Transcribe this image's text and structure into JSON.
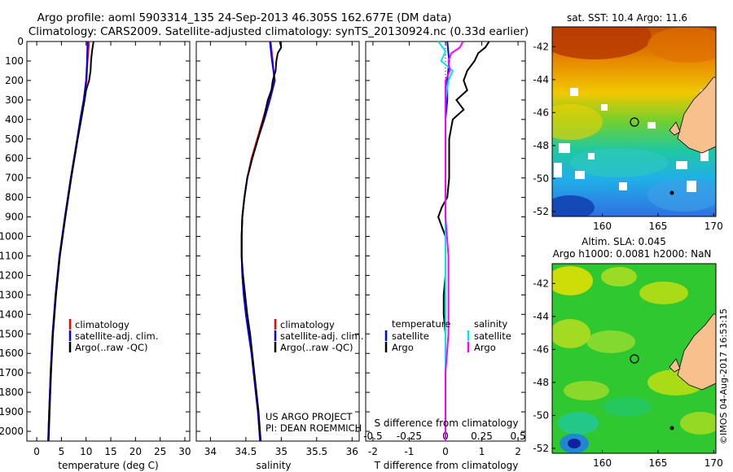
{
  "header": {
    "title_line1": "Argo profile: aoml 5903314_135 24-Sep-2013 46.305S 162.677E (DM data)",
    "title_line2": "Climatology: CARS2009. Satellite-adjusted climatology: synTS_20130924.nc (0.33d earlier)"
  },
  "colors": {
    "climatology": "#ff0000",
    "satellite": "#0000ff",
    "argo": "#000000",
    "salinity_satellite": "#00e5ee",
    "salinity_argo": "#ff00ff",
    "land": "#f7c08c"
  },
  "chart_data": [
    {
      "type": "line",
      "name": "temperature-profile",
      "xlabel": "temperature (deg C)",
      "ylabel": "",
      "xlim": [
        -2,
        31
      ],
      "ylim": [
        2050,
        0
      ],
      "xticks": [
        0,
        5,
        10,
        15,
        20,
        25,
        30
      ],
      "yticks": [
        0,
        100,
        200,
        300,
        400,
        500,
        600,
        700,
        800,
        900,
        1000,
        1100,
        1200,
        1300,
        1400,
        1500,
        1600,
        1700,
        1800,
        1900,
        2000
      ],
      "legend": [
        "climatology",
        "satellite-adj. clim.",
        "Argo(..raw -QC)"
      ],
      "series": [
        {
          "name": "climatology",
          "color": "#ff0000",
          "depth": [
            0,
            100,
            200,
            300,
            400,
            500,
            700,
            900,
            1100,
            1300,
            1500,
            1700,
            1900,
            2050
          ],
          "values": [
            10.6,
            10.3,
            10.1,
            9.6,
            8.9,
            8.2,
            6.9,
            5.7,
            4.6,
            3.8,
            3.2,
            2.8,
            2.5,
            2.3
          ]
        },
        {
          "name": "satellite-adj. clim.",
          "color": "#0000ff",
          "depth": [
            0,
            100,
            200,
            300,
            400,
            500,
            700,
            900,
            1100,
            1300,
            1500,
            1700,
            1900,
            2050
          ],
          "values": [
            10.3,
            10.2,
            10.0,
            9.5,
            8.8,
            8.2,
            6.9,
            5.7,
            4.6,
            3.8,
            3.2,
            2.8,
            2.5,
            2.3
          ]
        },
        {
          "name": "Argo(..raw -QC)",
          "color": "#000000",
          "depth": [
            0,
            50,
            100,
            150,
            200,
            250,
            300,
            400,
            500,
            700,
            900,
            1100,
            1300,
            1500,
            1700,
            1900,
            2050
          ],
          "values": [
            11.5,
            11.2,
            11.0,
            10.9,
            10.6,
            10.0,
            9.7,
            9.0,
            8.3,
            7.0,
            5.8,
            4.7,
            3.9,
            3.3,
            2.9,
            2.6,
            2.4
          ]
        }
      ]
    },
    {
      "type": "line",
      "name": "salinity-profile",
      "xlabel": "salinity",
      "ylabel": "",
      "xlim": [
        33.8,
        36.1
      ],
      "ylim": [
        2050,
        0
      ],
      "xticks": [
        34,
        34.5,
        35,
        35.5,
        36
      ],
      "legend": [
        "climatology",
        "satellite-adj. clim.",
        "Argo(..raw -QC)"
      ],
      "annotation": [
        "US ARGO PROJECT",
        "PI: DEAN ROEMMICH"
      ],
      "series": [
        {
          "name": "climatology",
          "color": "#ff0000",
          "depth": [
            0,
            100,
            200,
            300,
            400,
            500,
            600,
            700,
            800,
            900,
            1000,
            1100,
            1200,
            1300,
            1400,
            1500,
            1600,
            1700,
            1800,
            1900,
            2050
          ],
          "values": [
            34.85,
            34.88,
            34.9,
            34.82,
            34.74,
            34.66,
            34.58,
            34.52,
            34.48,
            34.45,
            34.44,
            34.44,
            34.45,
            34.47,
            34.5,
            34.54,
            34.58,
            34.61,
            34.64,
            34.67,
            34.7
          ]
        },
        {
          "name": "satellite-adj. clim.",
          "color": "#0000ff",
          "depth": [
            0,
            100,
            200,
            300,
            400,
            500,
            600,
            700,
            800,
            900,
            1000,
            1100,
            1200,
            1300,
            1400,
            1500,
            1600,
            1700,
            1800,
            1900,
            2050
          ],
          "values": [
            34.84,
            34.87,
            34.91,
            34.84,
            34.76,
            34.67,
            34.59,
            34.52,
            34.48,
            34.45,
            34.44,
            34.44,
            34.45,
            34.47,
            34.5,
            34.54,
            34.58,
            34.61,
            34.64,
            34.67,
            34.7
          ]
        },
        {
          "name": "Argo(..raw -QC)",
          "color": "#000000",
          "depth": [
            0,
            30,
            60,
            100,
            150,
            200,
            250,
            300,
            400,
            500,
            600,
            700,
            800,
            900,
            1000,
            1100,
            1200,
            1300,
            1400,
            1500,
            1600,
            1700,
            1800,
            1900,
            2050
          ],
          "values": [
            34.98,
            35.0,
            34.95,
            34.93,
            34.92,
            34.88,
            34.86,
            34.81,
            34.75,
            34.67,
            34.59,
            34.52,
            34.48,
            34.45,
            34.44,
            34.44,
            34.46,
            34.49,
            34.52,
            34.56,
            34.59,
            34.62,
            34.65,
            34.68,
            34.71
          ]
        }
      ]
    },
    {
      "type": "line",
      "name": "difference-from-climatology",
      "xlabel": "T difference from climatology",
      "xlabel_top": "S difference from climatology",
      "xlim": [
        -2.2,
        2.2
      ],
      "ylim": [
        2050,
        0
      ],
      "xticks_T": [
        -2,
        -1,
        0,
        1,
        2
      ],
      "xticks_S": [
        -0.5,
        -0.25,
        0,
        0.25,
        0.5
      ],
      "legend_temperature_header": "temperature",
      "legend_salinity_header": "salinity",
      "legend": [
        "satellite",
        "Argo",
        "satellite",
        "Argo"
      ],
      "series": [
        {
          "name": "satellite",
          "color": "#0000ff",
          "depth": [
            0,
            100,
            200,
            300,
            400,
            500,
            700,
            900,
            1100,
            1300,
            1500,
            1700,
            1900,
            2050
          ],
          "values": [
            0.05,
            0.1,
            0.05,
            0.05,
            0.0,
            0.0,
            0.0,
            0.0,
            0.0,
            0.0,
            0.0,
            0.0,
            0.0,
            0.0
          ]
        },
        {
          "name": "Argo",
          "color": "#000000",
          "depth": [
            0,
            30,
            60,
            100,
            150,
            200,
            250,
            300,
            350,
            400,
            500,
            600,
            700,
            800,
            850,
            900,
            950,
            1000,
            1100,
            1200,
            1300,
            1400,
            1500,
            1600,
            1700,
            1800,
            1900,
            2050
          ],
          "values": [
            1.2,
            1.1,
            0.9,
            0.8,
            0.6,
            0.5,
            0.6,
            0.3,
            0.5,
            0.2,
            0.1,
            0.1,
            0.1,
            0.05,
            -0.1,
            -0.2,
            -0.1,
            0.0,
            0.0,
            0.0,
            -0.05,
            -0.05,
            0.0,
            0.0,
            0.0,
            0.0,
            0.0,
            0.0
          ]
        },
        {
          "name": "satellite",
          "color": "#00e5ee",
          "depth": [
            0,
            50,
            100,
            150,
            200,
            300,
            400,
            500,
            700,
            900,
            1100,
            1300,
            1500,
            1700,
            1900,
            2050
          ],
          "values": [
            -0.05,
            0.0,
            -0.03,
            0.05,
            0.02,
            0.0,
            0.0,
            0.0,
            0.0,
            0.0,
            0.0,
            0.0,
            0.0,
            0.0,
            0.0,
            0.0
          ]
        },
        {
          "name": "Argo",
          "color": "#ff00ff",
          "depth": [
            0,
            30,
            60,
            100,
            150,
            200,
            300,
            400,
            500,
            700,
            900,
            1100,
            1300,
            1500,
            1700,
            1900,
            2050
          ],
          "values": [
            0.12,
            0.1,
            0.04,
            0.02,
            0.03,
            0.0,
            0.0,
            0.0,
            0.0,
            0.0,
            0.0,
            0.02,
            0.02,
            0.02,
            0.0,
            0.0,
            0.0
          ]
        }
      ]
    },
    {
      "type": "heatmap",
      "name": "sst-map",
      "title": "sat. SST: 10.4  Argo: 11.6",
      "xticks": [
        160,
        165,
        170
      ],
      "yticks": [
        -42,
        -44,
        -46,
        -48,
        -50,
        -52
      ],
      "xlim": [
        155.5,
        170.2
      ],
      "ylim": [
        -52.3,
        -40.8
      ],
      "float_position": {
        "lon": 162.677,
        "lat": -46.305
      }
    },
    {
      "type": "heatmap",
      "name": "sla-map",
      "title_line1": "Altim. SLA: 0.045",
      "title_line2": "Argo h1000: 0.0081  h2000: NaN",
      "xticks": [
        160,
        165,
        170
      ],
      "yticks": [
        -42,
        -44,
        -46,
        -48,
        -50,
        -52
      ],
      "xlim": [
        155.5,
        170.2
      ],
      "ylim": [
        -52.3,
        -40.8
      ],
      "float_position": {
        "lon": 162.677,
        "lat": -46.305
      }
    }
  ],
  "watermark": "©IMOS 04-Aug-2017 16:53:15"
}
